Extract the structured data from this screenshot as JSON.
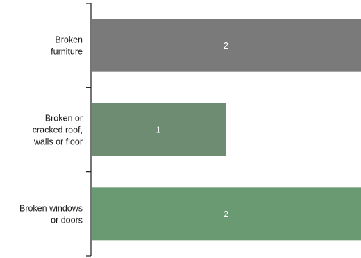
{
  "chart_data": {
    "type": "bar",
    "orientation": "horizontal",
    "categories": [
      [
        "Broken",
        "furniture"
      ],
      [
        "Broken or",
        "cracked roof,",
        "walls or floor"
      ],
      [
        "Broken windows",
        "or doors"
      ]
    ],
    "values": [
      2,
      1,
      2
    ],
    "value_labels": [
      "2",
      "1",
      "2"
    ],
    "colors": [
      "#7a7a7a",
      "#6d8c71",
      "#6a9a72"
    ],
    "xlim": [
      0,
      2
    ],
    "title": "",
    "xlabel": "",
    "ylabel": "",
    "grid": false,
    "legend": "none"
  }
}
